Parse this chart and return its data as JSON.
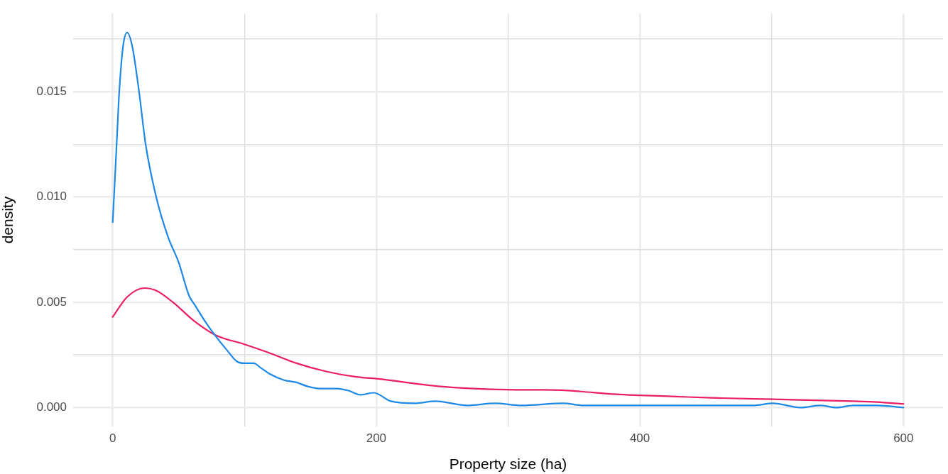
{
  "chart_data": {
    "type": "line",
    "xlabel": "Property size (ha)",
    "ylabel": "density",
    "xlim": [
      -30,
      630
    ],
    "ylim": [
      -0.0009,
      0.0187
    ],
    "xticks": [
      0,
      {
        "value": 100,
        "label": null
      },
      200,
      {
        "value": 300,
        "label": null
      },
      400,
      {
        "value": 500,
        "label": null
      },
      600
    ],
    "yticks": [
      {
        "value": 0,
        "label": "0.000"
      },
      {
        "value": 0.0025,
        "label": null
      },
      {
        "value": 0.005,
        "label": "0.005"
      },
      {
        "value": 0.0075,
        "label": null
      },
      {
        "value": 0.01,
        "label": "0.010"
      },
      {
        "value": 0.0125,
        "label": null
      },
      {
        "value": 0.015,
        "label": "0.015"
      },
      {
        "value": 0.0175,
        "label": null
      }
    ],
    "grid": true,
    "legend": false,
    "marker": "none",
    "line_style": "solid",
    "series": [
      {
        "color": "#1e88e5",
        "x": [
          0,
          1,
          3,
          5,
          8,
          11,
          15,
          20,
          25,
          33,
          42,
          50,
          58,
          62,
          70,
          78,
          87,
          94,
          100,
          107,
          112,
          119,
          130,
          139,
          148,
          157,
          170,
          179,
          188,
          198,
          211,
          229,
          245,
          269,
          290,
          310,
          342,
          357,
          382,
          400,
          418,
          454,
          486,
          501,
          522,
          537,
          549,
          562,
          580,
          600
        ],
        "values": [
          0.0088,
          0.01,
          0.0125,
          0.015,
          0.0172,
          0.0178,
          0.0171,
          0.015,
          0.0125,
          0.01,
          0.0081,
          0.0069,
          0.0053,
          0.0049,
          0.0041,
          0.0034,
          0.0027,
          0.0022,
          0.0021,
          0.0021,
          0.0019,
          0.0016,
          0.0013,
          0.0012,
          0.001,
          0.0009,
          0.0009,
          0.0008,
          0.0006,
          0.0007,
          0.0003,
          0.0002,
          0.0003,
          0.0001,
          0.0002,
          0.0001,
          0.0002,
          0.0001,
          0.0001,
          0.0001,
          0.0001,
          0.0001,
          0.0001,
          0.0002,
          0,
          0.0001,
          0,
          0.0001,
          0.0001,
          0
        ]
      },
      {
        "color": "#e91e63",
        "x": [
          0,
          11,
          24,
          33,
          46,
          62,
          78,
          100,
          118,
          139,
          162,
          184,
          200,
          247,
          274,
          299,
          341,
          355,
          382,
          400,
          427,
          454,
          501,
          562,
          580,
          600
        ],
        "values": [
          0.0043,
          0.00525,
          0.00567,
          0.00555,
          0.00498,
          0.0041,
          0.00344,
          0.003,
          0.00261,
          0.00211,
          0.00171,
          0.00146,
          0.00137,
          0.00101,
          0.0009,
          0.00085,
          0.00082,
          0.00076,
          0.00063,
          0.00058,
          0.00052,
          0.00046,
          0.00039,
          0.0003,
          0.00026,
          0.00017
        ]
      }
    ]
  }
}
